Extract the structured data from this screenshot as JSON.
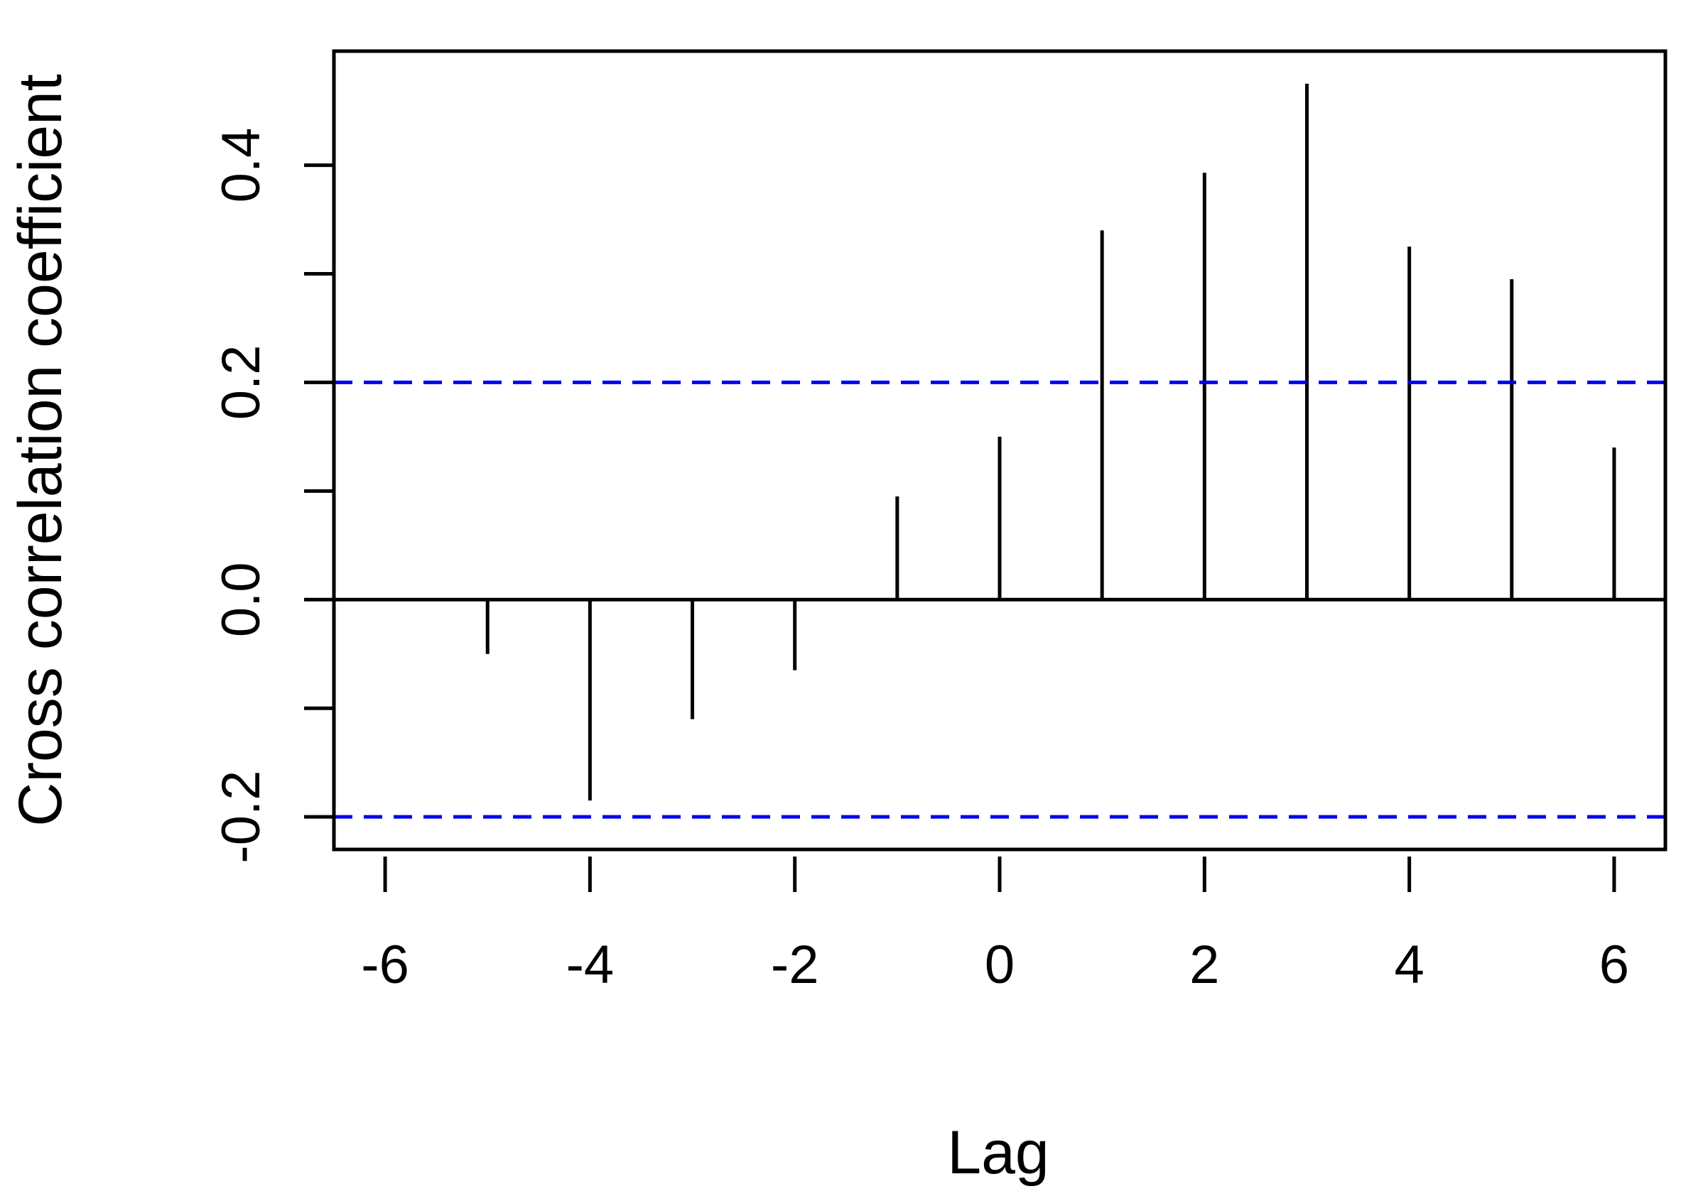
{
  "chart_data": {
    "type": "bar",
    "subtype": "lollipop-ccf",
    "title": "",
    "xlabel": "Lag",
    "ylabel": "Cross correlation coefficient",
    "x": [
      -6,
      -5,
      -4,
      -3,
      -2,
      -1,
      0,
      1,
      2,
      3,
      4,
      5,
      6
    ],
    "values": [
      0.0,
      -0.05,
      -0.185,
      -0.11,
      -0.065,
      0.095,
      0.15,
      0.34,
      0.393,
      0.475,
      0.325,
      0.295,
      0.14
    ],
    "xlim": [
      -6.5,
      6.5
    ],
    "ylim": [
      -0.23,
      0.505
    ],
    "x_ticks": [
      -6,
      -4,
      -2,
      0,
      2,
      4,
      6
    ],
    "x_tick_labels": [
      "-6",
      "-4",
      "-2",
      "0",
      "2",
      "4",
      "6"
    ],
    "y_ticks": [
      -0.2,
      -0.1,
      0.0,
      0.1,
      0.2,
      0.3,
      0.4
    ],
    "y_tick_labels": [
      "-0.2",
      "",
      "0.0",
      "",
      "0.2",
      "",
      "0.4"
    ],
    "confidence_bounds": [
      0.2,
      -0.2
    ],
    "colors": {
      "bars": "#000000",
      "bounds": "#0000ee",
      "axis": "#000000"
    },
    "grid": false,
    "legend": "none"
  }
}
